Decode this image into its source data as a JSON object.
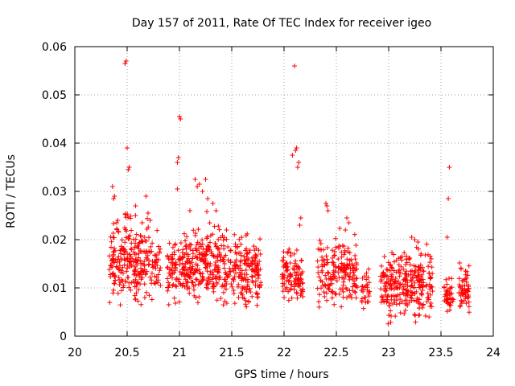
{
  "chart_data": {
    "type": "scatter",
    "title": "Day 157 of 2011, Rate Of TEC Index for receiver igeo",
    "xlabel": "GPS time / hours",
    "ylabel": "ROTI / TECUs",
    "xlim": [
      20,
      24
    ],
    "ylim": [
      0,
      0.06
    ],
    "x_ticks": [
      "20",
      "20.5",
      "21",
      "21.5",
      "22",
      "22.5",
      "23",
      "23.5",
      "24"
    ],
    "y_ticks": [
      "0",
      "0.01",
      "0.02",
      "0.03",
      "0.04",
      "0.05",
      "0.06"
    ],
    "grid": true,
    "marker": "+",
    "color": "#ff0000",
    "series": [
      {
        "name": "ROTI",
        "clusters": [
          {
            "x_start": 20.33,
            "x_end": 20.45,
            "y_min": 0.006,
            "y_max": 0.026,
            "count": 70
          },
          {
            "x_start": 20.45,
            "x_end": 20.72,
            "y_min": 0.005,
            "y_max": 0.027,
            "count": 170
          },
          {
            "x_start": 20.72,
            "x_end": 20.82,
            "y_min": 0.006,
            "y_max": 0.023,
            "count": 40
          },
          {
            "x_start": 20.88,
            "x_end": 21.1,
            "y_min": 0.005,
            "y_max": 0.024,
            "count": 120
          },
          {
            "x_start": 21.1,
            "x_end": 21.42,
            "y_min": 0.005,
            "y_max": 0.026,
            "count": 190
          },
          {
            "x_start": 21.42,
            "x_end": 21.78,
            "y_min": 0.005,
            "y_max": 0.024,
            "count": 200
          },
          {
            "x_start": 21.98,
            "x_end": 22.18,
            "y_min": 0.006,
            "y_max": 0.02,
            "count": 110
          },
          {
            "x_start": 22.32,
            "x_end": 22.7,
            "y_min": 0.004,
            "y_max": 0.024,
            "count": 190
          },
          {
            "x_start": 22.74,
            "x_end": 22.82,
            "y_min": 0.005,
            "y_max": 0.015,
            "count": 30
          },
          {
            "x_start": 22.92,
            "x_end": 23.42,
            "y_min": 0.002,
            "y_max": 0.02,
            "count": 290
          },
          {
            "x_start": 23.53,
            "x_end": 23.62,
            "y_min": 0.004,
            "y_max": 0.013,
            "count": 40
          },
          {
            "x_start": 23.67,
            "x_end": 23.77,
            "y_min": 0.004,
            "y_max": 0.017,
            "count": 60
          }
        ],
        "points": [
          [
            20.36,
            0.031
          ],
          [
            20.38,
            0.029
          ],
          [
            20.37,
            0.0285
          ],
          [
            20.41,
            0.024
          ],
          [
            20.4,
            0.0235
          ],
          [
            20.48,
            0.0565
          ],
          [
            20.49,
            0.057
          ],
          [
            20.5,
            0.039
          ],
          [
            20.51,
            0.0345
          ],
          [
            20.52,
            0.035
          ],
          [
            20.58,
            0.027
          ],
          [
            20.68,
            0.029
          ],
          [
            20.7,
            0.0255
          ],
          [
            20.72,
            0.024
          ],
          [
            20.98,
            0.036
          ],
          [
            20.99,
            0.037
          ],
          [
            21.0,
            0.0455
          ],
          [
            21.01,
            0.045
          ],
          [
            20.98,
            0.0305
          ],
          [
            21.1,
            0.026
          ],
          [
            21.15,
            0.0325
          ],
          [
            21.17,
            0.031
          ],
          [
            21.19,
            0.0315
          ],
          [
            21.22,
            0.03
          ],
          [
            21.25,
            0.0325
          ],
          [
            21.27,
            0.0285
          ],
          [
            21.32,
            0.0275
          ],
          [
            21.35,
            0.026
          ],
          [
            22.1,
            0.056
          ],
          [
            22.11,
            0.0385
          ],
          [
            22.12,
            0.039
          ],
          [
            22.13,
            0.035
          ],
          [
            22.14,
            0.036
          ],
          [
            22.16,
            0.0245
          ],
          [
            22.15,
            0.023
          ],
          [
            22.08,
            0.0375
          ],
          [
            22.4,
            0.0275
          ],
          [
            22.41,
            0.027
          ],
          [
            22.42,
            0.026
          ],
          [
            22.6,
            0.0245
          ],
          [
            22.62,
            0.0235
          ],
          [
            23.22,
            0.0205
          ],
          [
            23.25,
            0.02
          ],
          [
            23.28,
            0.0195
          ],
          [
            23.58,
            0.035
          ],
          [
            23.57,
            0.0285
          ],
          [
            23.56,
            0.0205
          ]
        ]
      }
    ]
  }
}
